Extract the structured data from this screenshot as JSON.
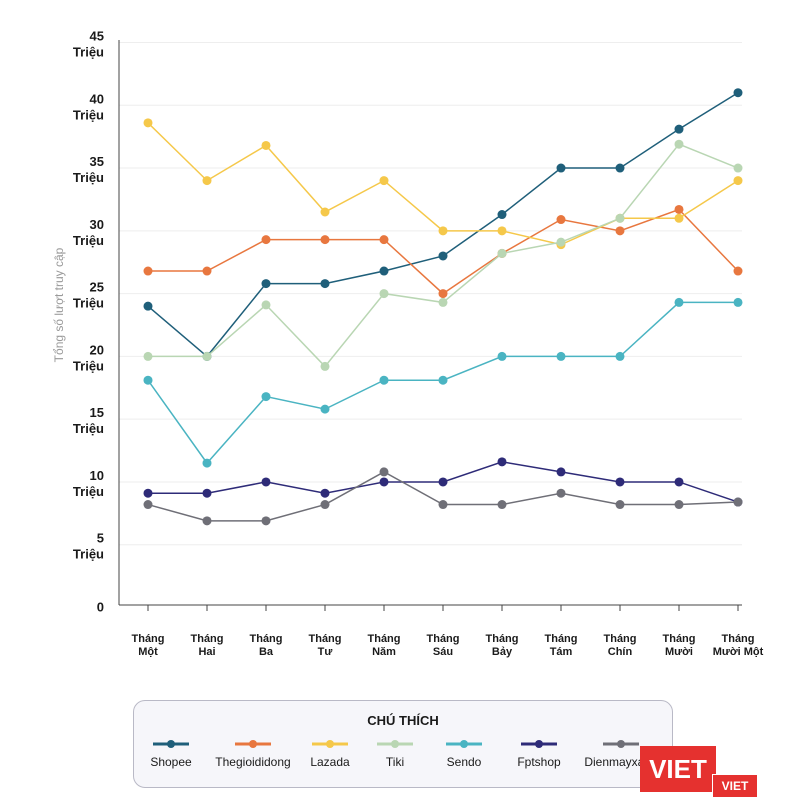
{
  "chart_data": {
    "type": "line",
    "title": "",
    "xlabel": "",
    "ylabel": "Tổng số lượt truy cập",
    "ylim": [
      0,
      45
    ],
    "yticks": [
      {
        "value": 0,
        "label": "0"
      },
      {
        "value": 5,
        "label": "5\nTriệu"
      },
      {
        "value": 10,
        "label": "10\nTriệu"
      },
      {
        "value": 15,
        "label": "15\nTriệu"
      },
      {
        "value": 20,
        "label": "20\nTriệu"
      },
      {
        "value": 25,
        "label": "25\nTriệu"
      },
      {
        "value": 30,
        "label": "30\nTriệu"
      },
      {
        "value": 35,
        "label": "35\nTriệu"
      },
      {
        "value": 40,
        "label": "40\nTriệu"
      },
      {
        "value": 45,
        "label": "45\nTriệu"
      }
    ],
    "categories": [
      "Tháng\nMột",
      "Tháng\nHai",
      "Tháng\nBa",
      "Tháng\nTư",
      "Tháng\nNăm",
      "Tháng\nSáu",
      "Tháng\nBảy",
      "Tháng\nTám",
      "Tháng\nChín",
      "Tháng\nMười",
      "Tháng\nMười Một"
    ],
    "series": [
      {
        "name": "Shopee",
        "color": "#1f5f7a",
        "values": [
          24,
          20,
          25.8,
          25.8,
          26.8,
          28,
          31.3,
          35,
          35,
          38.1,
          41
        ]
      },
      {
        "name": "Thegioididong",
        "color": "#e8773f",
        "values": [
          26.8,
          26.8,
          29.3,
          29.3,
          29.3,
          25,
          28.2,
          30.9,
          30,
          31.7,
          26.8
        ]
      },
      {
        "name": "Lazada",
        "color": "#f5c84a",
        "values": [
          38.6,
          34,
          36.8,
          31.5,
          34,
          30,
          30,
          28.9,
          31,
          31,
          34
        ]
      },
      {
        "name": "Tiki",
        "color": "#b9d6b3",
        "values": [
          20,
          20,
          24.1,
          19.2,
          25,
          24.3,
          28.2,
          29.1,
          31,
          36.9,
          35
        ]
      },
      {
        "name": "Sendo",
        "color": "#4ab4c2",
        "values": [
          18.1,
          11.5,
          16.8,
          15.8,
          18.1,
          18.1,
          20,
          20,
          20,
          24.3,
          24.3
        ]
      },
      {
        "name": "Fptshop",
        "color": "#2e2b78",
        "values": [
          9.1,
          9.1,
          10,
          9.1,
          10,
          10,
          11.6,
          10.8,
          10,
          10,
          8.4
        ]
      },
      {
        "name": "Dienmayxanh",
        "color": "#6f6f77",
        "values": [
          8.2,
          6.9,
          6.9,
          8.2,
          10.8,
          8.2,
          8.2,
          9.1,
          8.2,
          8.2,
          8.4
        ]
      }
    ],
    "legend": {
      "title": "CHÚ THÍCH",
      "position": "bottom"
    },
    "grid": true
  },
  "watermark": {
    "main": "VIET",
    "small": "VIET"
  }
}
